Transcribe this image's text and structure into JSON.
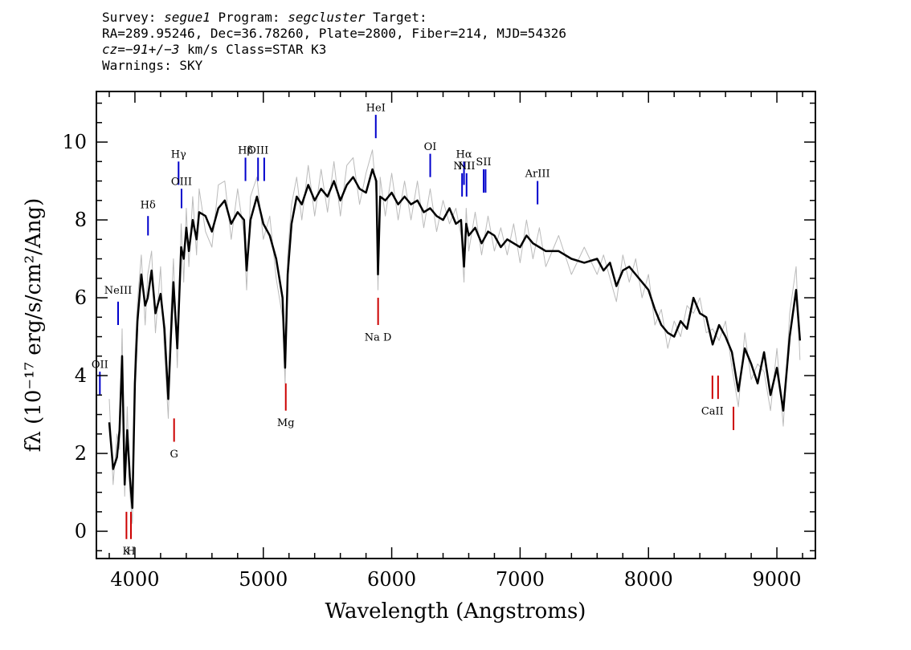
{
  "header": {
    "line1": {
      "survey_label": "Survey: ",
      "survey": "segue1",
      "program_label": " Program: ",
      "program": "segcluster",
      "target_label": " Target:"
    },
    "line2": "RA=289.95246, Dec=36.78260, Plate=2800, Fiber=214, MJD=54326",
    "line3": {
      "cz_label": "cz=",
      "cz_value": "−91+/−3",
      "cz_rest": " km/s Class=STAR K3"
    },
    "line4": "Warnings: SKY"
  },
  "chart_data": {
    "type": "line",
    "xlabel": "Wavelength (Angstroms)",
    "ylabel": "fλ (10⁻¹⁷ erg/s/cm²/Ang)",
    "xlim": [
      3700,
      9300
    ],
    "ylim": [
      -0.7,
      11.3
    ],
    "x_ticks": [
      4000,
      5000,
      6000,
      7000,
      8000,
      9000
    ],
    "y_ticks": [
      0,
      2,
      4,
      6,
      8,
      10
    ],
    "x_minor_step": 200,
    "y_minor_step": 0.5,
    "grid": false,
    "series": [
      {
        "role": "flux",
        "color": "#000000",
        "x": [
          3800,
          3830,
          3860,
          3880,
          3900,
          3920,
          3940,
          3960,
          3980,
          4000,
          4020,
          4050,
          4080,
          4100,
          4130,
          4160,
          4200,
          4230,
          4260,
          4280,
          4300,
          4330,
          4360,
          4380,
          4400,
          4420,
          4450,
          4480,
          4500,
          4550,
          4600,
          4650,
          4700,
          4750,
          4800,
          4850,
          4870,
          4900,
          4950,
          5000,
          5050,
          5100,
          5150,
          5170,
          5190,
          5220,
          5260,
          5300,
          5350,
          5400,
          5450,
          5500,
          5550,
          5600,
          5650,
          5700,
          5750,
          5800,
          5850,
          5880,
          5893,
          5910,
          5950,
          6000,
          6050,
          6100,
          6150,
          6200,
          6250,
          6300,
          6350,
          6400,
          6450,
          6500,
          6540,
          6563,
          6580,
          6600,
          6650,
          6700,
          6750,
          6800,
          6850,
          6900,
          6950,
          7000,
          7050,
          7100,
          7150,
          7200,
          7300,
          7400,
          7500,
          7600,
          7650,
          7700,
          7750,
          7800,
          7850,
          7900,
          7950,
          8000,
          8050,
          8100,
          8150,
          8200,
          8250,
          8300,
          8350,
          8400,
          8450,
          8500,
          8550,
          8600,
          8650,
          8680,
          8700,
          8750,
          8800,
          8850,
          8900,
          8950,
          9000,
          9050,
          9100,
          9150,
          9180
        ],
        "y": [
          2.8,
          1.6,
          1.9,
          2.6,
          4.5,
          1.2,
          2.6,
          1.4,
          0.6,
          3.8,
          5.4,
          6.6,
          5.8,
          6.0,
          6.7,
          5.6,
          6.1,
          5.2,
          3.4,
          5.0,
          6.4,
          4.7,
          7.3,
          7.0,
          7.8,
          7.2,
          8.0,
          7.5,
          8.2,
          8.1,
          7.7,
          8.3,
          8.5,
          7.9,
          8.2,
          8.0,
          6.7,
          8.0,
          8.6,
          7.9,
          7.6,
          7.0,
          6.0,
          4.2,
          6.6,
          7.9,
          8.6,
          8.4,
          8.9,
          8.5,
          8.8,
          8.6,
          9.0,
          8.5,
          8.9,
          9.1,
          8.8,
          8.7,
          9.3,
          9.0,
          6.6,
          8.6,
          8.5,
          8.7,
          8.4,
          8.6,
          8.4,
          8.5,
          8.2,
          8.3,
          8.1,
          8.0,
          8.3,
          7.9,
          8.0,
          6.8,
          7.9,
          7.6,
          7.8,
          7.4,
          7.7,
          7.6,
          7.3,
          7.5,
          7.4,
          7.3,
          7.6,
          7.4,
          7.3,
          7.2,
          7.2,
          7.0,
          6.9,
          7.0,
          6.7,
          6.9,
          6.3,
          6.7,
          6.8,
          6.6,
          6.4,
          6.2,
          5.7,
          5.3,
          5.1,
          5.0,
          5.4,
          5.2,
          6.0,
          5.6,
          5.5,
          4.8,
          5.3,
          5.0,
          4.6,
          4.0,
          3.6,
          4.7,
          4.3,
          3.8,
          4.6,
          3.5,
          4.2,
          3.1,
          5.0,
          6.2,
          4.9
        ],
        "width": 2.5
      },
      {
        "role": "error",
        "color": "#bbbbbb",
        "x": [
          3800,
          3830,
          3860,
          3880,
          3900,
          3920,
          3940,
          3960,
          3980,
          4000,
          4020,
          4050,
          4080,
          4100,
          4130,
          4160,
          4200,
          4230,
          4260,
          4280,
          4300,
          4330,
          4360,
          4380,
          4400,
          4420,
          4450,
          4480,
          4500,
          4550,
          4600,
          4650,
          4700,
          4750,
          4800,
          4850,
          4870,
          4900,
          4950,
          5000,
          5050,
          5100,
          5150,
          5170,
          5190,
          5220,
          5260,
          5300,
          5350,
          5400,
          5450,
          5500,
          5550,
          5600,
          5650,
          5700,
          5750,
          5800,
          5850,
          5880,
          5893,
          5910,
          5950,
          6000,
          6050,
          6100,
          6150,
          6200,
          6250,
          6300,
          6350,
          6400,
          6450,
          6500,
          6540,
          6563,
          6580,
          6600,
          6650,
          6700,
          6750,
          6800,
          6850,
          6900,
          6950,
          7000,
          7050,
          7100,
          7150,
          7200,
          7300,
          7400,
          7500,
          7600,
          7650,
          7700,
          7750,
          7800,
          7850,
          7900,
          7950,
          8000,
          8050,
          8100,
          8150,
          8200,
          8250,
          8300,
          8350,
          8400,
          8450,
          8500,
          8550,
          8600,
          8650,
          8680,
          8700,
          8750,
          8800,
          8850,
          8900,
          8950,
          9000,
          9050,
          9100,
          9150,
          9180
        ],
        "y": [
          3.4,
          1.2,
          2.5,
          2.1,
          5.2,
          0.9,
          3.2,
          1.0,
          0.2,
          4.5,
          5.9,
          7.1,
          5.3,
          6.6,
          7.2,
          5.1,
          6.8,
          4.6,
          2.9,
          5.6,
          7.0,
          4.2,
          7.9,
          6.4,
          8.3,
          6.8,
          8.6,
          7.1,
          8.8,
          7.7,
          7.3,
          8.9,
          9.0,
          7.5,
          8.8,
          7.6,
          6.2,
          8.6,
          9.1,
          7.5,
          8.1,
          6.5,
          5.5,
          3.8,
          7.1,
          8.4,
          9.1,
          8.0,
          9.4,
          8.1,
          9.3,
          8.2,
          9.5,
          8.1,
          9.4,
          9.6,
          8.4,
          9.2,
          9.8,
          8.6,
          6.2,
          9.1,
          8.1,
          9.2,
          8.0,
          9.0,
          8.0,
          9.0,
          7.8,
          8.8,
          7.7,
          8.5,
          7.9,
          8.3,
          7.6,
          6.4,
          8.3,
          7.2,
          8.2,
          7.1,
          8.1,
          7.2,
          7.8,
          7.1,
          7.9,
          6.9,
          8.0,
          7.0,
          7.8,
          6.8,
          7.6,
          6.6,
          7.3,
          6.6,
          7.1,
          6.5,
          5.9,
          7.1,
          6.4,
          7.0,
          6.0,
          6.6,
          5.3,
          5.7,
          4.7,
          5.4,
          5.0,
          5.8,
          5.6,
          6.0,
          5.1,
          5.2,
          4.9,
          5.4,
          4.2,
          3.6,
          3.2,
          5.1,
          3.9,
          4.3,
          4.1,
          3.1,
          4.7,
          2.7,
          5.6,
          6.8,
          4.4
        ],
        "width": 1
      }
    ],
    "line_markers": [
      {
        "label": "OII",
        "wavelength": 3727,
        "color": "#0000cc",
        "y1": 3.5,
        "y2": 4.1,
        "label_y": 4.2
      },
      {
        "label": "NeIII",
        "wavelength": 3869,
        "color": "#0000cc",
        "y1": 5.3,
        "y2": 5.9,
        "label_y": 6.1
      },
      {
        "label": "Hδ",
        "wavelength": 4102,
        "color": "#0000cc",
        "y1": 7.6,
        "y2": 8.1,
        "label_y": 8.3
      },
      {
        "label": "Hγ",
        "wavelength": 4340,
        "color": "#0000cc",
        "y1": 8.9,
        "y2": 9.5,
        "label_y": 9.6
      },
      {
        "label": "OIII",
        "wavelength": 4363,
        "color": "#0000cc",
        "y1": 8.3,
        "y2": 8.8,
        "label_y": 8.9
      },
      {
        "label": "Hβ",
        "wavelength": 4861,
        "color": "#0000cc",
        "y1": 9.0,
        "y2": 9.6,
        "label_y": 9.7
      },
      {
        "label": "OIII",
        "wavelength": 4959,
        "color": "#0000cc",
        "y1": 9.0,
        "y2": 9.6,
        "label_y": 9.7
      },
      {
        "label": "",
        "wavelength": 5007,
        "color": "#0000cc",
        "y1": 9.0,
        "y2": 9.6,
        "label_y": 9.7
      },
      {
        "label": "HeI",
        "wavelength": 5876,
        "color": "#0000cc",
        "y1": 10.1,
        "y2": 10.7,
        "label_y": 10.8
      },
      {
        "label": "OI",
        "wavelength": 6300,
        "color": "#0000cc",
        "y1": 9.1,
        "y2": 9.7,
        "label_y": 9.8
      },
      {
        "label": "NII",
        "wavelength": 6548,
        "color": "#0000cc",
        "y1": 8.6,
        "y2": 9.2,
        "label_y": 9.3
      },
      {
        "label": "Hα",
        "wavelength": 6563,
        "color": "#0000cc",
        "y1": 8.9,
        "y2": 9.5,
        "label_y": 9.6
      },
      {
        "label": "NII",
        "wavelength": 6583,
        "color": "#0000cc",
        "y1": 8.6,
        "y2": 9.2,
        "label_y": 9.3
      },
      {
        "label": "SII",
        "wavelength": 6716,
        "color": "#0000cc",
        "y1": 8.7,
        "y2": 9.3,
        "label_y": 9.4
      },
      {
        "label": "",
        "wavelength": 6731,
        "color": "#0000cc",
        "y1": 8.7,
        "y2": 9.3,
        "label_y": 9.4
      },
      {
        "label": "ArIII",
        "wavelength": 7136,
        "color": "#0000cc",
        "y1": 8.4,
        "y2": 9.0,
        "label_y": 9.1
      },
      {
        "label": "K",
        "wavelength": 3934,
        "color": "#cc0000",
        "y1": -0.2,
        "y2": 0.5,
        "label_y": -0.6
      },
      {
        "label": "H",
        "wavelength": 3969,
        "color": "#cc0000",
        "y1": -0.2,
        "y2": 0.5,
        "label_y": -0.6
      },
      {
        "label": "G",
        "wavelength": 4305,
        "color": "#cc0000",
        "y1": 2.3,
        "y2": 2.9,
        "label_y": 1.9
      },
      {
        "label": "Mg",
        "wavelength": 5175,
        "color": "#cc0000",
        "y1": 3.1,
        "y2": 3.8,
        "label_y": 2.7
      },
      {
        "label": "Na D",
        "wavelength": 5894,
        "color": "#cc0000",
        "y1": 5.3,
        "y2": 6.0,
        "label_y": 4.9
      },
      {
        "label": "CaII",
        "wavelength": 8498,
        "color": "#cc0000",
        "y1": 3.4,
        "y2": 4.0,
        "label_y": 3.0
      },
      {
        "label": "",
        "wavelength": 8542,
        "color": "#cc0000",
        "y1": 3.4,
        "y2": 4.0,
        "label_y": 3.0
      },
      {
        "label": "",
        "wavelength": 8662,
        "color": "#cc0000",
        "y1": 2.6,
        "y2": 3.2,
        "label_y": 2.2
      }
    ]
  }
}
